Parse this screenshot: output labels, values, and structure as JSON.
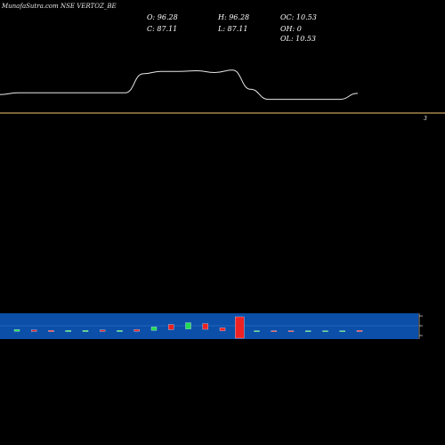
{
  "header": {
    "title": "MunafaSutra.com NSE VERTOZ_BE",
    "o": "O: 96.28",
    "h": "H: 96.28",
    "oc": "OC: 10.53",
    "c": "C: 87.11",
    "l": "L: 87.11",
    "oh": "OH: 0",
    "ol": "OL: 10.53"
  },
  "chart_data": {
    "type": "line",
    "price_axis": {
      "tick_label": "3"
    },
    "price": {
      "name": "",
      "color": "#c8a05a",
      "x": [
        0,
        1,
        2,
        3,
        4,
        5,
        6,
        7,
        8,
        9,
        10,
        11,
        12,
        13,
        14,
        15,
        16,
        17,
        18,
        19,
        20
      ],
      "y": [
        3.1,
        3.4,
        3.4,
        3.4,
        3.4,
        3.4,
        3.4,
        3.4,
        6.6,
        7.0,
        7.0,
        7.1,
        6.8,
        7.2,
        4.0,
        2.3,
        2.3,
        2.3,
        2.3,
        2.3,
        3.3
      ],
      "ylim": [
        0,
        16
      ]
    },
    "volume": {
      "panel_color": "#0b4fa8",
      "items": [
        {
          "x": 0,
          "v": 0.6,
          "dir": "up"
        },
        {
          "x": 1,
          "v": 0.5,
          "dir": "down"
        },
        {
          "x": 2,
          "v": 0.4,
          "dir": "down"
        },
        {
          "x": 3,
          "v": 0.4,
          "dir": "up"
        },
        {
          "x": 4,
          "v": 0.4,
          "dir": "up"
        },
        {
          "x": 5,
          "v": 0.5,
          "dir": "down"
        },
        {
          "x": 6,
          "v": 0.4,
          "dir": "up"
        },
        {
          "x": 7,
          "v": 0.6,
          "dir": "down"
        },
        {
          "x": 8,
          "v": 1.2,
          "dir": "up"
        },
        {
          "x": 9,
          "v": 1.8,
          "dir": "down"
        },
        {
          "x": 10,
          "v": 2.2,
          "dir": "up"
        },
        {
          "x": 11,
          "v": 2.0,
          "dir": "down"
        },
        {
          "x": 12,
          "v": 1.0,
          "dir": "down"
        },
        {
          "x": 13,
          "v": 9.0,
          "dir": "down"
        },
        {
          "x": 14,
          "v": 0.3,
          "dir": "up"
        },
        {
          "x": 15,
          "v": 0.3,
          "dir": "down"
        },
        {
          "x": 16,
          "v": 0.3,
          "dir": "down"
        },
        {
          "x": 17,
          "v": 0.3,
          "dir": "up"
        },
        {
          "x": 18,
          "v": 0.3,
          "dir": "up"
        },
        {
          "x": 19,
          "v": 0.3,
          "dir": "up"
        },
        {
          "x": 20,
          "v": 0.4,
          "dir": "down"
        }
      ],
      "up_color": "#22dd55",
      "down_color": "#ee2222",
      "mid_value": 3.5
    }
  }
}
